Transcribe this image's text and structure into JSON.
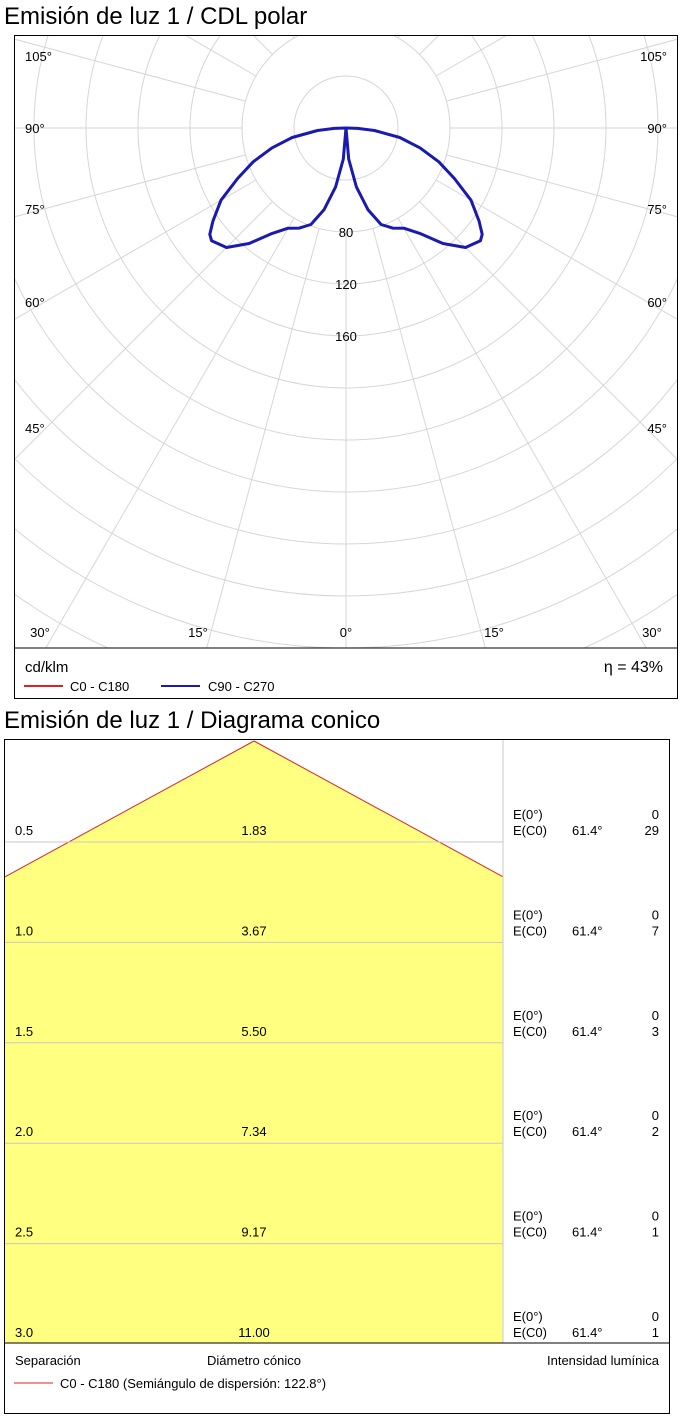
{
  "polar": {
    "title": "Emisión de luz 1 / CDL polar",
    "unit_label": "cd/klm",
    "efficiency": "η = 43%",
    "legend": [
      {
        "label": "C0 - C180",
        "color": "#dd2222"
      },
      {
        "label": "C90 - C270",
        "color": "#1a1ab0"
      }
    ]
  },
  "cone": {
    "title": "Emisión de luz 1 / Diagrama conico",
    "footer": {
      "separation_label": "Separación",
      "diameter_label": "Diámetro cónico",
      "intensity_label": "Intensidad lumínica",
      "legend_label": "C0 - C180 (Semiángulo de dispersión: 122.8°)"
    }
  },
  "chart_data": [
    {
      "type": "polar",
      "title": "Emisión de luz 1 / CDL polar",
      "unit": "cd/klm",
      "radial_ticks": [
        80,
        120,
        160
      ],
      "rmax": 200,
      "angle_labels": [
        "105°",
        "90°",
        "75°",
        "60°",
        "45°",
        "30°",
        "15°",
        "0°",
        "15°",
        "30°",
        "45°",
        "60°",
        "75°",
        "90°",
        "105°"
      ],
      "grid": true,
      "efficiency": "η = 43%",
      "series": [
        {
          "name": "C0 - C180",
          "color": "#dd2222",
          "angles_deg": [],
          "values": []
        },
        {
          "name": "C90 - C270",
          "color": "#1a1ab0",
          "angles_deg": [
            0,
            5,
            10,
            15,
            20,
            25,
            30,
            35,
            40,
            45,
            50,
            52,
            55,
            60,
            65,
            70,
            75,
            80,
            85,
            88,
            90
          ],
          "values": [
            0,
            24,
            46,
            65,
            79,
            85,
            89,
            99,
            116,
            130,
            135,
            133,
            125,
            111,
            92,
            76,
            59,
            42,
            22,
            9,
            0
          ]
        }
      ]
    },
    {
      "type": "table",
      "title": "Emisión de luz 1 / Diagrama conico",
      "half_angle_deg": 61.4,
      "dispersion_semiangle": "122.8°",
      "columns": [
        "Separación",
        "Diámetro cónico",
        "Intensidad lumínica"
      ],
      "rows": [
        {
          "separation": "0.5",
          "diameter": "1.83",
          "e0_label": "E(0°)",
          "ec0_label": "E(C0)",
          "angle": "61.4°",
          "e0": "0",
          "ec0": "29"
        },
        {
          "separation": "1.0",
          "diameter": "3.67",
          "e0_label": "E(0°)",
          "ec0_label": "E(C0)",
          "angle": "61.4°",
          "e0": "0",
          "ec0": "7"
        },
        {
          "separation": "1.5",
          "diameter": "5.50",
          "e0_label": "E(0°)",
          "ec0_label": "E(C0)",
          "angle": "61.4°",
          "e0": "0",
          "ec0": "3"
        },
        {
          "separation": "2.0",
          "diameter": "7.34",
          "e0_label": "E(0°)",
          "ec0_label": "E(C0)",
          "angle": "61.4°",
          "e0": "0",
          "ec0": "2"
        },
        {
          "separation": "2.5",
          "diameter": "9.17",
          "e0_label": "E(0°)",
          "ec0_label": "E(C0)",
          "angle": "61.4°",
          "e0": "0",
          "ec0": "1"
        },
        {
          "separation": "3.0",
          "diameter": "11.00",
          "e0_label": "E(0°)",
          "ec0_label": "E(C0)",
          "angle": "61.4°",
          "e0": "0",
          "ec0": "1"
        }
      ],
      "fill_color": "#ffff80",
      "edge_color": "#dd2222"
    }
  ]
}
